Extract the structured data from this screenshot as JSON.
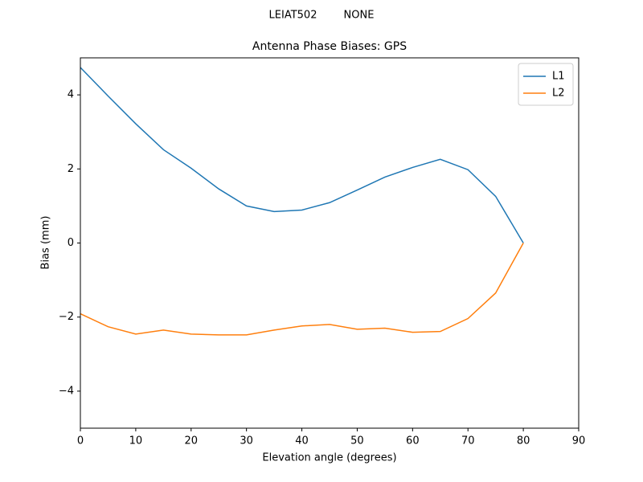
{
  "chart_data": {
    "type": "line",
    "suptitle": "LEIAT502        NONE",
    "title": "Antenna Phase Biases: GPS",
    "xlabel": "Elevation angle (degrees)",
    "ylabel": "Bias (mm)",
    "x": [
      0,
      5,
      10,
      15,
      20,
      25,
      30,
      35,
      40,
      45,
      50,
      55,
      60,
      65,
      70,
      75,
      80
    ],
    "series": [
      {
        "name": "L1",
        "color": "#1f77b4",
        "values": [
          4.74,
          3.97,
          3.22,
          2.52,
          2.02,
          1.46,
          1.0,
          0.85,
          0.89,
          1.09,
          1.43,
          1.78,
          2.04,
          2.26,
          1.98,
          1.26,
          0
        ]
      },
      {
        "name": "L2",
        "color": "#ff7f0e",
        "values": [
          -1.91,
          -2.26,
          -2.46,
          -2.35,
          -2.46,
          -2.48,
          -2.48,
          -2.35,
          -2.24,
          -2.2,
          -2.33,
          -2.3,
          -2.41,
          -2.39,
          -2.04,
          -1.35,
          0
        ]
      }
    ],
    "xlim": [
      0,
      90
    ],
    "xticks": [
      0,
      10,
      20,
      30,
      40,
      50,
      60,
      70,
      80,
      90
    ],
    "ylim": [
      -5,
      5
    ],
    "yticks": [
      {
        "value": -4,
        "label": "−4"
      },
      {
        "value": -2,
        "label": "−2"
      },
      0,
      2,
      4
    ],
    "legend": "upper right",
    "grid": false
  }
}
